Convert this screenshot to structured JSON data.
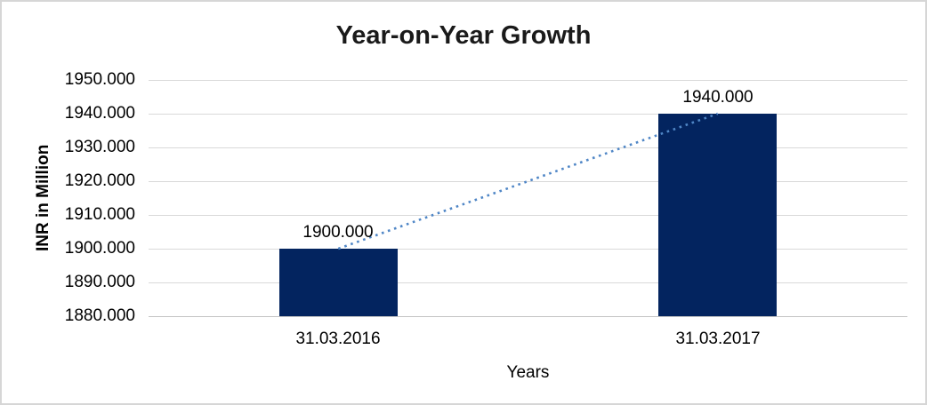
{
  "chart_data": {
    "type": "bar",
    "title": "Year-on-Year Growth",
    "xlabel": "Years",
    "ylabel": "INR in Million",
    "categories": [
      "31.03.2016",
      "31.03.2017"
    ],
    "values": [
      1900,
      1940
    ],
    "data_labels": [
      "1900.000",
      "1940.000"
    ],
    "yticks": [
      "1950.000",
      "1940.000",
      "1930.000",
      "1920.000",
      "1910.000",
      "1900.000",
      "1890.000",
      "1880.000"
    ],
    "ylim": [
      1880,
      1950
    ],
    "ytick_step": 10,
    "grid": true,
    "legend": "none",
    "bar_color": "#03245f",
    "gridline_color": "#d9d9d9",
    "axis_line_color": "#c3c3c3",
    "trendline": {
      "type": "linear",
      "style": "dotted",
      "color": "#4f86c6",
      "from_value": 1900,
      "to_value": 1940
    }
  },
  "frame": {
    "border_color": "#d6d6d6",
    "background": "#ffffff"
  }
}
